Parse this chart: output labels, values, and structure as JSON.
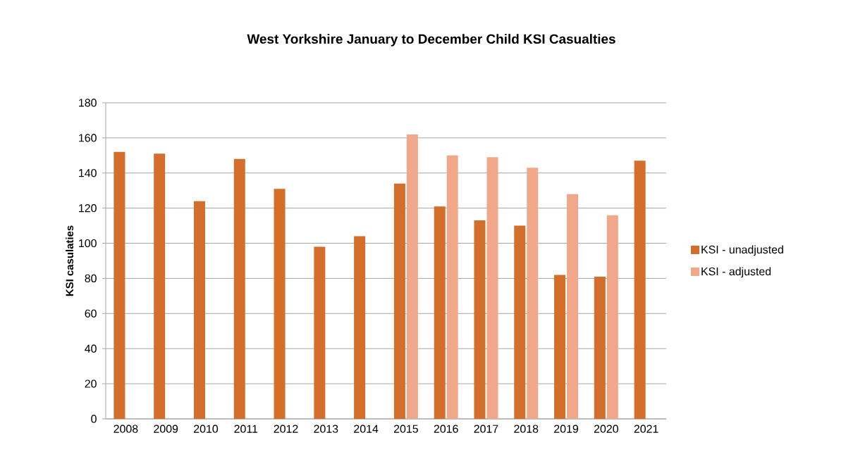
{
  "chart_data": {
    "type": "bar",
    "title": "West Yorkshire January to December Child KSI Casualties",
    "ylabel": "KSI casulaties",
    "categories": [
      "2008",
      "2009",
      "2010",
      "2011",
      "2012",
      "2013",
      "2014",
      "2015",
      "2016",
      "2017",
      "2018",
      "2019",
      "2020",
      "2021"
    ],
    "series": [
      {
        "name": "KSI - unadjusted",
        "color": "#d36f2b",
        "values": [
          152,
          151,
          124,
          148,
          131,
          98,
          104,
          134,
          121,
          113,
          110,
          82,
          81,
          147
        ]
      },
      {
        "name": "KSI - adjusted",
        "color": "#f1a88a",
        "values": [
          null,
          null,
          null,
          null,
          null,
          null,
          null,
          162,
          150,
          149,
          143,
          128,
          116,
          null
        ]
      }
    ],
    "ylim": [
      0,
      180
    ],
    "yticks": [
      0,
      20,
      40,
      60,
      80,
      100,
      120,
      140,
      160,
      180
    ],
    "grid": "y",
    "legend": "right"
  }
}
